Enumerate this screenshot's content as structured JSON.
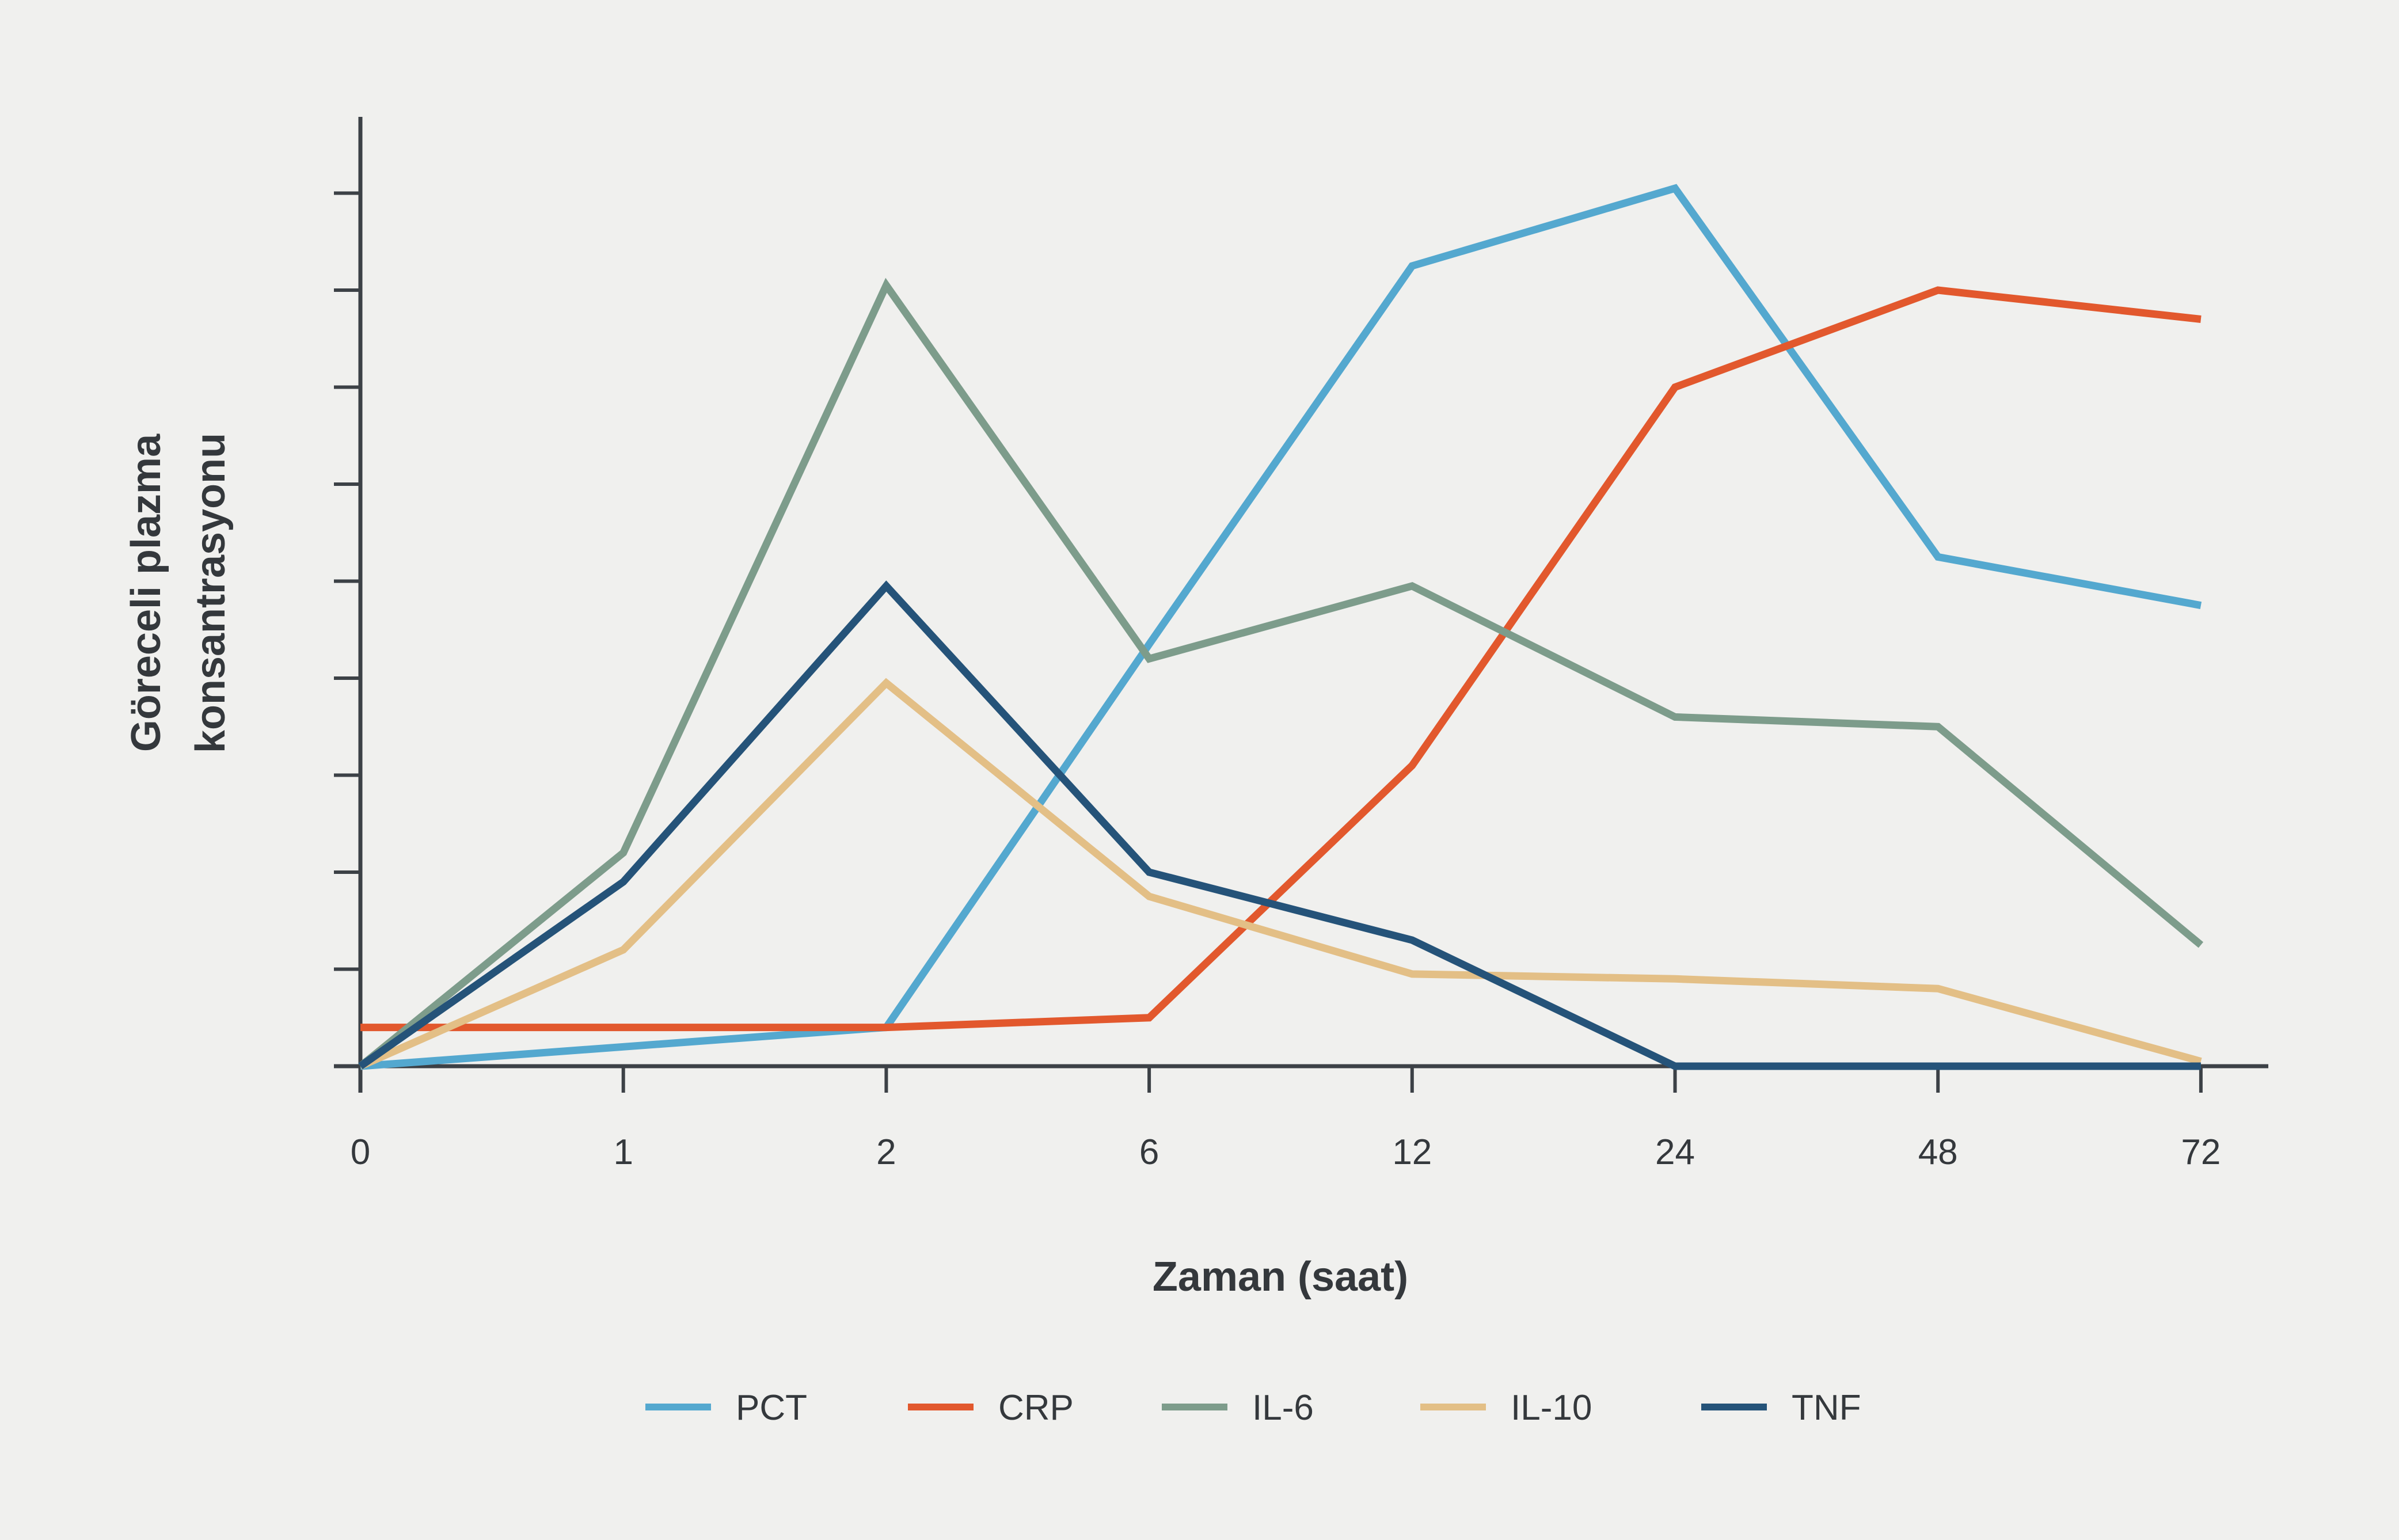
{
  "chart_data": {
    "type": "line",
    "title": "",
    "xlabel": "Zaman (saat)",
    "ylabel": "Göreceli plazma konsantrasyonu",
    "ylabel_line1": "Göreceli plazma",
    "ylabel_line2": "konsantrasyonu",
    "x_tick_labels": [
      "0",
      "1",
      "2",
      "6",
      "12",
      "24",
      "48",
      "72"
    ],
    "x_values_hours": [
      0,
      1,
      2,
      6,
      12,
      24,
      48,
      72
    ],
    "x_spacing": "categorical-equal",
    "ylim": [
      0,
      9.8
    ],
    "y_tick_values": [
      1,
      2,
      3,
      4,
      5,
      6,
      7,
      8,
      9
    ],
    "y_tick_labels_shown": false,
    "grid": false,
    "legend_position": "bottom-center",
    "series": [
      {
        "name": "PCT",
        "color": "#54A8CF",
        "values": [
          0,
          0.2,
          0.4,
          4.35,
          8.25,
          9.05,
          5.25,
          4.75
        ]
      },
      {
        "name": "CRP",
        "color": "#E2582D",
        "values": [
          0.4,
          0.4,
          0.4,
          0.5,
          3.1,
          7.0,
          8.0,
          7.7
        ]
      },
      {
        "name": "IL-6",
        "color": "#7D9C8B",
        "values": [
          0,
          2.2,
          8.05,
          4.2,
          4.95,
          3.6,
          3.5,
          1.25
        ]
      },
      {
        "name": "IL-10",
        "color": "#E3BF86",
        "values": [
          0,
          1.2,
          3.95,
          1.75,
          0.95,
          0.9,
          0.8,
          0.05
        ]
      },
      {
        "name": "TNF",
        "color": "#255379",
        "values": [
          0,
          1.9,
          4.95,
          2.0,
          1.3,
          0,
          0,
          0
        ]
      }
    ],
    "colors": {
      "background": "#F0F0EE",
      "axis": "#3C4146",
      "text": "#34383C"
    }
  }
}
